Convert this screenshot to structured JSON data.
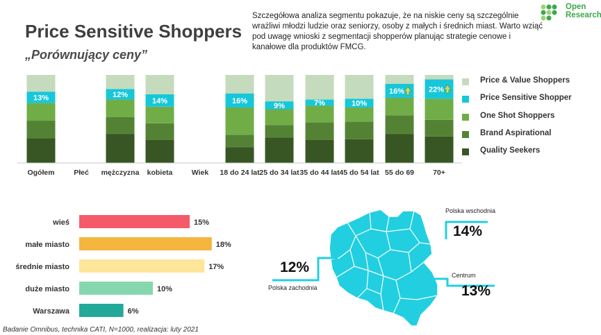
{
  "header": {
    "title": "Price Sensitive Shoppers",
    "subtitle": "„Porównujący ceny”",
    "intro": "Szczegółowa analiza segmentu pokazuje, że na niskie ceny są szczególnie wrażliwi młodzi ludzie oraz seniorzy, osoby z małych i średnich miast. Warto wziąć pod uwagę wnioski z segmentacji shopperów planując strategie cenowe i kanałowe dla produktów FMCG.",
    "logo_line1": "Open",
    "logo_line2": "Research",
    "logo_icon": "dots-logo-icon"
  },
  "footer": "Badanie Omnibus, technika CATI, N=1000, realizacja: luty 2021",
  "chart_data": [
    {
      "type": "bar",
      "stacked": true,
      "categories": [
        "Ogółem",
        "Płeć",
        "mężczyzna",
        "kobieta",
        "Wiek",
        "18 do 24 lat",
        "25 do 34 lat",
        "35 do 44 lat",
        "45 do 54 lat",
        "55 do 69",
        "70+"
      ],
      "series": [
        {
          "name": "Quality Seekers",
          "color": "#375623",
          "values": [
            28,
            null,
            33,
            26,
            null,
            18,
            29,
            26,
            27,
            33,
            30
          ]
        },
        {
          "name": "Brand Aspirational",
          "color": "#548235",
          "values": [
            20,
            null,
            19,
            19,
            null,
            14,
            14,
            20,
            20,
            21,
            19
          ]
        },
        {
          "name": "One Shot Shoppers",
          "color": "#70ad47",
          "values": [
            20,
            null,
            20,
            19,
            null,
            31,
            18,
            19,
            16,
            20,
            24
          ]
        },
        {
          "name": "Price Sensitive Shopper",
          "color": "#17c7d9",
          "values": [
            13,
            null,
            12,
            14,
            null,
            16,
            9,
            7,
            10,
            16,
            22
          ]
        },
        {
          "name": "Price & Value Shoppers",
          "color": "#c5dbbd",
          "values": [
            19,
            null,
            16,
            22,
            null,
            21,
            30,
            28,
            27,
            10,
            5
          ]
        }
      ],
      "data_labels": [
        "13%",
        "",
        "12%",
        "14%",
        "",
        "16%",
        "9%",
        "7%",
        "10%",
        "16%",
        "22%"
      ],
      "highlight_arrows": [
        false,
        false,
        false,
        false,
        false,
        false,
        false,
        false,
        false,
        true,
        true
      ],
      "arrow_icon": "up-arrow-icon",
      "ylim": [
        0,
        100
      ],
      "legend_position": "right",
      "legend_order": [
        "Price & Value Shoppers",
        "Price Sensitive Shopper",
        "One Shot Shoppers",
        "Brand Aspirational",
        "Quality Seekers"
      ],
      "grid": false
    },
    {
      "type": "bar",
      "orientation": "horizontal",
      "categories": [
        "wieś",
        "małe miasto",
        "średnie miasto",
        "duże miasto",
        "Warszawa"
      ],
      "values": [
        15,
        18,
        17,
        10,
        6
      ],
      "labels": [
        "15%",
        "18%",
        "17%",
        "10%",
        "6%"
      ],
      "colors": [
        "#f55a6b",
        "#f4b63f",
        "#fde599",
        "#86d7ae",
        "#23a99a"
      ],
      "grid": false
    }
  ],
  "map": {
    "fill_color": "#22cfe0",
    "regions": [
      {
        "name": "Polska wschodnia",
        "value": "14%"
      },
      {
        "name": "Polska zachodnia",
        "value": "12%"
      },
      {
        "name": "Centrum",
        "value": "13%"
      }
    ]
  }
}
